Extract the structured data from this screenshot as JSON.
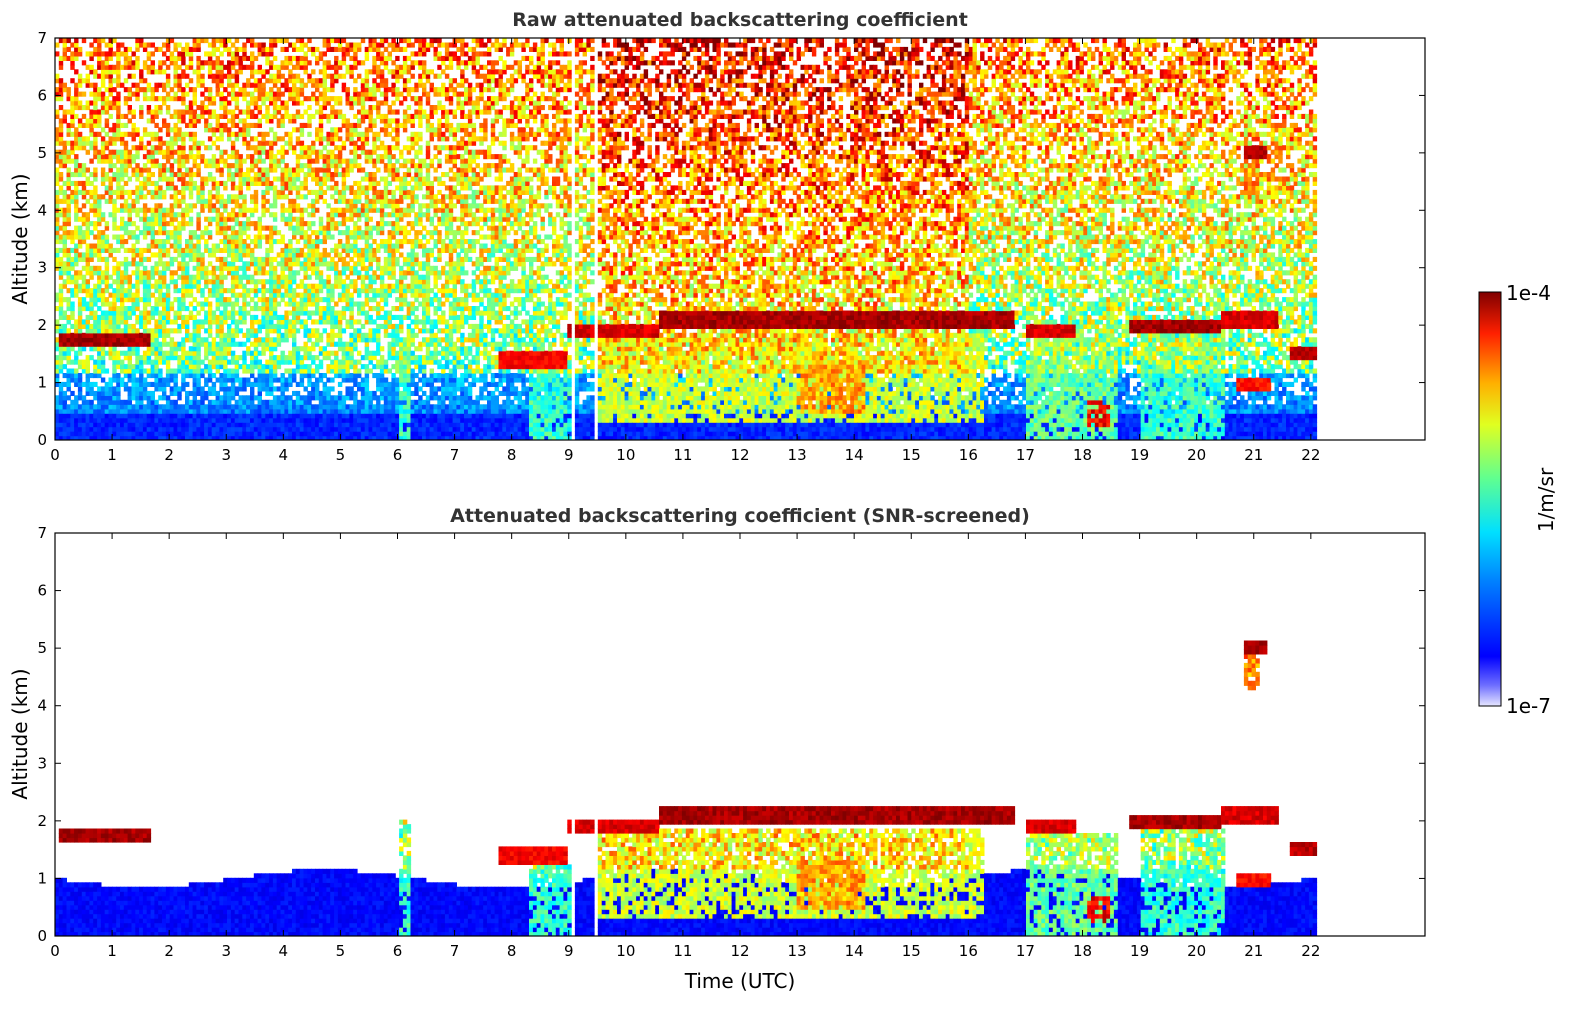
{
  "chart_data": [
    {
      "type": "heatmap",
      "title": "Raw attenuated backscattering coefficient",
      "xlabel": "",
      "ylabel": "Altitude (km)",
      "xlim": [
        0,
        24
      ],
      "ylim": [
        0,
        7
      ],
      "xticks": [
        "0",
        "1",
        "2",
        "3",
        "4",
        "5",
        "6",
        "7",
        "8",
        "9",
        "10",
        "11",
        "12",
        "13",
        "14",
        "15",
        "16",
        "17",
        "18",
        "19",
        "20",
        "21",
        "22"
      ],
      "yticks": [
        "0",
        "1",
        "2",
        "3",
        "4",
        "5",
        "6",
        "7"
      ],
      "data_end_hour": 22.1,
      "gap_hours": [
        9.1,
        9.45
      ],
      "features": [
        {
          "kind": "cloud",
          "t0": 0.05,
          "t1": 1.7,
          "alt": 1.75,
          "level": 1.0
        },
        {
          "kind": "cloud",
          "t0": 7.8,
          "t1": 9.0,
          "alt": 1.4,
          "level": 0.92
        },
        {
          "kind": "cloud",
          "t0": 9.0,
          "t1": 10.6,
          "alt": 1.9,
          "level": 0.95
        },
        {
          "kind": "cloud",
          "t0": 10.6,
          "t1": 16.8,
          "alt": 2.1,
          "level": 1.0
        },
        {
          "kind": "cloud",
          "t0": 17.0,
          "t1": 17.9,
          "alt": 1.9,
          "level": 0.95
        },
        {
          "kind": "cloud",
          "t0": 18.8,
          "t1": 20.4,
          "alt": 2.0,
          "level": 1.0
        },
        {
          "kind": "cloud",
          "t0": 20.4,
          "t1": 21.4,
          "alt": 2.1,
          "level": 0.95
        },
        {
          "kind": "cloud",
          "t0": 21.6,
          "t1": 22.1,
          "alt": 1.55,
          "level": 0.98
        },
        {
          "kind": "cloud",
          "t0": 20.7,
          "t1": 21.3,
          "alt": 1.0,
          "level": 0.9
        },
        {
          "kind": "cloud",
          "t0": 20.8,
          "t1": 21.2,
          "alt": 5.0,
          "level": 1.0
        },
        {
          "kind": "plume",
          "t0": 9.5,
          "t1": 16.3,
          "alt0": 0.3,
          "alt1": 1.9,
          "level": 0.65
        },
        {
          "kind": "plume",
          "t0": 13.0,
          "t1": 14.2,
          "alt0": 0.5,
          "alt1": 1.3,
          "level": 0.8
        },
        {
          "kind": "plume",
          "t0": 17.0,
          "t1": 18.6,
          "alt0": 0.0,
          "alt1": 1.8,
          "level": 0.55
        },
        {
          "kind": "plume",
          "t0": 18.1,
          "t1": 18.5,
          "alt0": 0.2,
          "alt1": 0.7,
          "level": 0.95
        },
        {
          "kind": "plume",
          "t0": 19.0,
          "t1": 20.5,
          "alt0": 0.0,
          "alt1": 1.9,
          "level": 0.5
        },
        {
          "kind": "plume",
          "t0": 8.3,
          "t1": 9.1,
          "alt0": 0.0,
          "alt1": 1.3,
          "level": 0.5
        },
        {
          "kind": "plume",
          "t0": 6.0,
          "t1": 6.2,
          "alt0": 0.0,
          "alt1": 2.0,
          "level": 0.5
        },
        {
          "kind": "plume",
          "t0": 20.8,
          "t1": 21.1,
          "alt0": 4.3,
          "alt1": 5.0,
          "level": 0.8
        }
      ]
    },
    {
      "type": "heatmap",
      "title": "Attenuated backscattering coefficient (SNR-screened)",
      "xlabel": "Time (UTC)",
      "ylabel": "Altitude (km)",
      "xlim": [
        0,
        24
      ],
      "ylim": [
        0,
        7
      ],
      "xticks": [
        "0",
        "1",
        "2",
        "3",
        "4",
        "5",
        "6",
        "7",
        "8",
        "9",
        "10",
        "11",
        "12",
        "13",
        "14",
        "15",
        "16",
        "17",
        "18",
        "19",
        "20",
        "21",
        "22"
      ],
      "yticks": [
        "0",
        "1",
        "2",
        "3",
        "4",
        "5",
        "6",
        "7"
      ],
      "data_end_hour": 22.1,
      "gap_hours": [
        9.1,
        9.45
      ]
    }
  ],
  "colorbar": {
    "label": "1/m/sr",
    "max_label": "1e-4",
    "min_label": "1e-7",
    "colormap": "jet"
  }
}
